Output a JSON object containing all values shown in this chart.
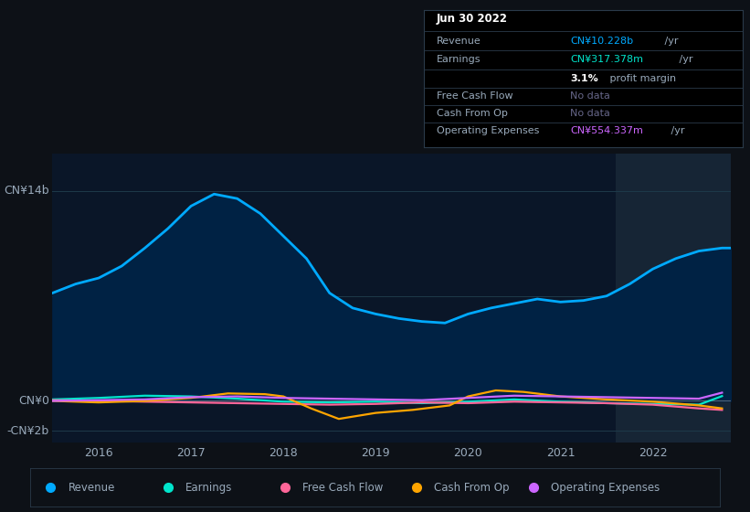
{
  "background_color": "#0d1117",
  "plot_bg_color": "#0a1628",
  "ylabel_top": "CN¥14b",
  "ylabel_zero": "CN¥0",
  "ylabel_neg": "-CN¥2b",
  "xlim": [
    2015.5,
    2022.85
  ],
  "ylim": [
    -2800000000.0,
    16500000000.0
  ],
  "xticks": [
    2016,
    2017,
    2018,
    2019,
    2020,
    2021,
    2022
  ],
  "revenue_color": "#00aaff",
  "revenue_fill": "#002244",
  "earnings_color": "#00e5cc",
  "fcf_color": "#ff6699",
  "cashfromop_color": "#ffa500",
  "opex_color": "#cc66ff",
  "zero_line_color": "#556677",
  "grid_line_color": "#1e3a4a",
  "highlight_x_start": 2021.6,
  "highlight_x_end": 2022.85,
  "highlight_color": "#162535",
  "revenue_x": [
    2015.5,
    2015.75,
    2016.0,
    2016.25,
    2016.5,
    2016.75,
    2017.0,
    2017.25,
    2017.5,
    2017.75,
    2018.0,
    2018.25,
    2018.5,
    2018.75,
    2019.0,
    2019.25,
    2019.5,
    2019.75,
    2020.0,
    2020.25,
    2020.5,
    2020.75,
    2021.0,
    2021.25,
    2021.5,
    2021.75,
    2022.0,
    2022.25,
    2022.5,
    2022.75,
    2022.85
  ],
  "revenue_y": [
    7200000000.0,
    7800000000.0,
    8200000000.0,
    9000000000.0,
    10200000000.0,
    11500000000.0,
    13000000000.0,
    13800000000.0,
    13500000000.0,
    12500000000.0,
    11000000000.0,
    9500000000.0,
    7200000000.0,
    6200000000.0,
    5800000000.0,
    5500000000.0,
    5300000000.0,
    5200000000.0,
    5800000000.0,
    6200000000.0,
    6500000000.0,
    6800000000.0,
    6600000000.0,
    6700000000.0,
    7000000000.0,
    7800000000.0,
    8800000000.0,
    9500000000.0,
    10000000000.0,
    10200000000.0,
    10200000000.0
  ],
  "earnings_x": [
    2015.5,
    2016.0,
    2016.5,
    2017.0,
    2017.5,
    2018.0,
    2018.5,
    2019.0,
    2019.5,
    2020.0,
    2020.5,
    2021.0,
    2021.5,
    2022.0,
    2022.5,
    2022.75
  ],
  "earnings_y": [
    100000000.0,
    200000000.0,
    350000000.0,
    300000000.0,
    150000000.0,
    -50000000.0,
    -100000000.0,
    -50000000.0,
    -150000000.0,
    -50000000.0,
    100000000.0,
    -50000000.0,
    -150000000.0,
    -200000000.0,
    -250000000.0,
    320000000.0
  ],
  "fcf_x": [
    2015.5,
    2016.0,
    2016.5,
    2017.0,
    2017.5,
    2018.0,
    2018.5,
    2019.0,
    2019.5,
    2020.0,
    2020.5,
    2021.0,
    2021.5,
    2022.0,
    2022.5,
    2022.75
  ],
  "fcf_y": [
    50000000.0,
    0.0,
    -50000000.0,
    -100000000.0,
    -150000000.0,
    -200000000.0,
    -250000000.0,
    -200000000.0,
    -100000000.0,
    -150000000.0,
    -50000000.0,
    -100000000.0,
    -150000000.0,
    -250000000.0,
    -500000000.0,
    -600000000.0
  ],
  "cashop_x": [
    2015.5,
    2016.0,
    2016.5,
    2017.0,
    2017.4,
    2017.8,
    2018.0,
    2018.3,
    2018.6,
    2019.0,
    2019.4,
    2019.8,
    2020.0,
    2020.3,
    2020.6,
    2021.0,
    2021.5,
    2022.0,
    2022.5,
    2022.75
  ],
  "cashop_y": [
    0.0,
    -100000000.0,
    0.0,
    200000000.0,
    500000000.0,
    450000000.0,
    300000000.0,
    -500000000.0,
    -1200000000.0,
    -800000000.0,
    -600000000.0,
    -300000000.0,
    300000000.0,
    700000000.0,
    600000000.0,
    300000000.0,
    100000000.0,
    -50000000.0,
    -300000000.0,
    -500000000.0
  ],
  "opex_x": [
    2015.5,
    2016.0,
    2016.5,
    2017.0,
    2017.5,
    2018.0,
    2018.5,
    2019.0,
    2019.5,
    2020.0,
    2020.5,
    2021.0,
    2021.5,
    2022.0,
    2022.5,
    2022.75
  ],
  "opex_y": [
    0.0,
    50000000.0,
    100000000.0,
    250000000.0,
    300000000.0,
    200000000.0,
    150000000.0,
    100000000.0,
    50000000.0,
    200000000.0,
    350000000.0,
    300000000.0,
    250000000.0,
    200000000.0,
    150000000.0,
    550000000.0
  ],
  "legend_items": [
    "Revenue",
    "Earnings",
    "Free Cash Flow",
    "Cash From Op",
    "Operating Expenses"
  ],
  "legend_colors": [
    "#00aaff",
    "#00e5cc",
    "#ff6699",
    "#ffa500",
    "#cc66ff"
  ],
  "tooltip_date": "Jun 30 2022",
  "tooltip_revenue_val": "CN¥10.228b",
  "tooltip_earnings_val": "CN¥317.378m",
  "tooltip_margin": "3.1%",
  "tooltip_opex_val": "CN¥554.337m",
  "revenue_color_tt": "#00aaff",
  "earnings_color_tt": "#00e5cc",
  "opex_color_tt": "#cc66ff",
  "nodata_color": "#666688",
  "label_color": "#99aabb",
  "white": "#ffffff"
}
